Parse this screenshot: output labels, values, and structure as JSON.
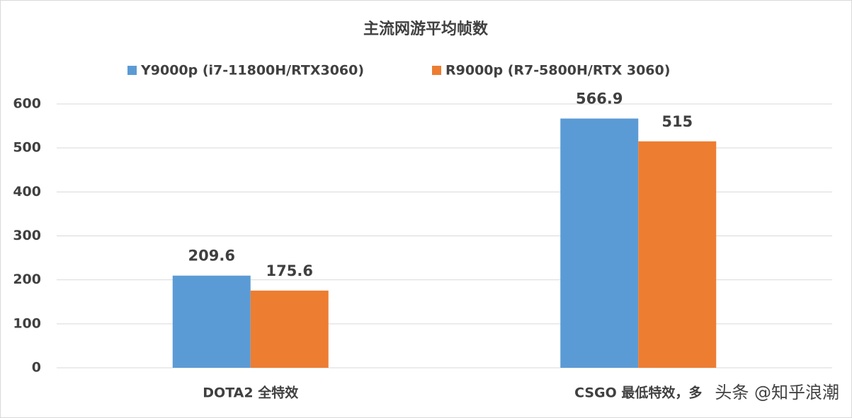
{
  "chart_data": {
    "type": "bar",
    "title": "主流网游平均帧数",
    "categories": [
      "DOTA2  全特效",
      "CSGO    最低特效，多"
    ],
    "series": [
      {
        "name": "Y9000p   (i7-11800H/RTX3060)",
        "color": "#5b9bd5",
        "values": [
          209.6,
          566.9
        ]
      },
      {
        "name": "R9000p   (R7-5800H/RTX 3060)",
        "color": "#ed7d31",
        "values": [
          175.6,
          515
        ]
      }
    ],
    "ylim": [
      0,
      600
    ],
    "yticks": [
      0,
      100,
      200,
      300,
      400,
      500,
      600
    ],
    "grid": true,
    "legend": "top",
    "watermark": "头条 @知乎浪潮"
  }
}
